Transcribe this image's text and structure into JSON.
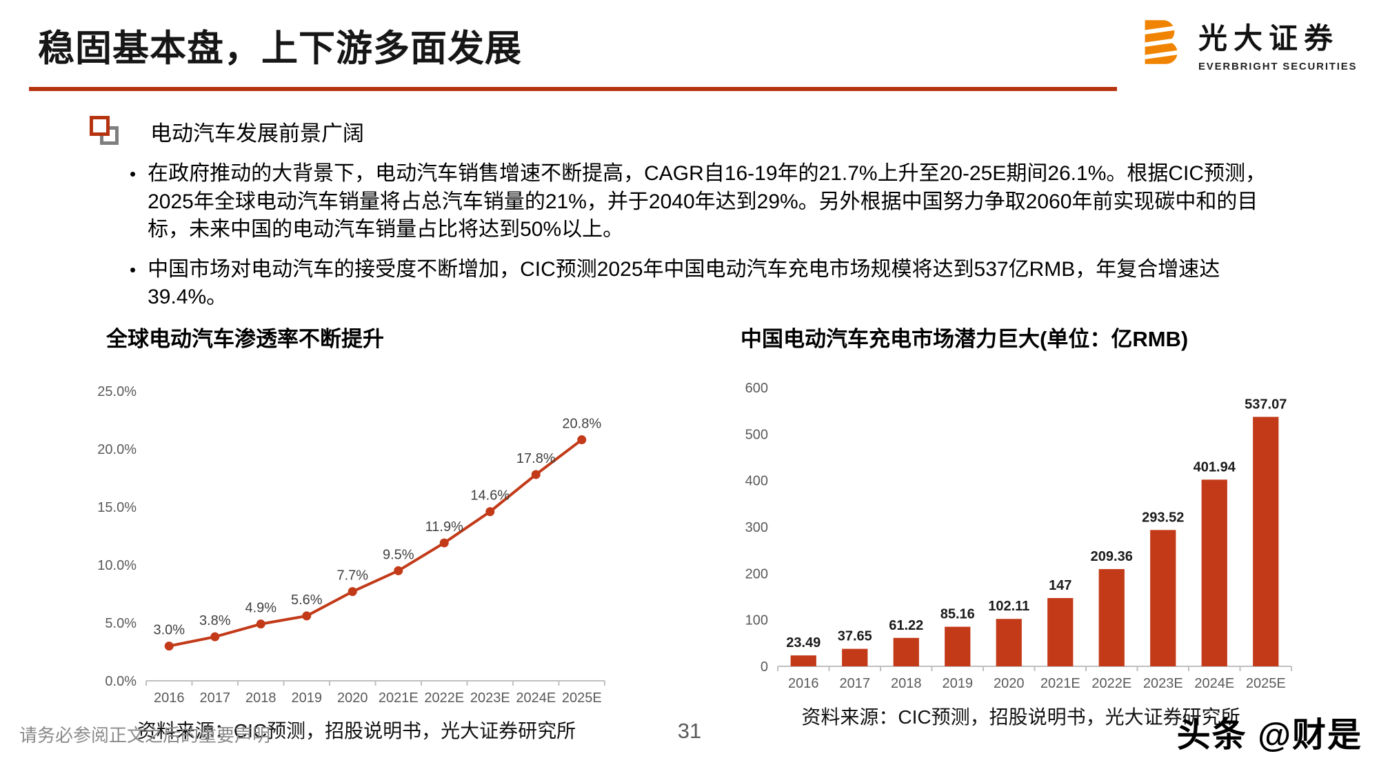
{
  "header": {
    "title": "稳固基本盘，上下游多面发展",
    "logo": {
      "name_cn": "光大证券",
      "name_en": "EVERBRIGHT SECURITIES"
    }
  },
  "section": {
    "heading": "电动汽车发展前景广阔",
    "bullet_marker": "•",
    "bullets": [
      "在政府推动的大背景下，电动汽车销售增速不断提高，CAGR自16-19年的21.7%上升至20-25E期间26.1%。根据CIC预测，2025年全球电动汽车销量将占总汽车销量的21%，并于2040年达到29%。另外根据中国努力争取2060年前实现碳中和的目标，未来中国的电动汽车销量占比将达到50%以上。",
      "中国市场对电动汽车的接受度不断增加，CIC预测2025年中国电动汽车充电市场规模将达到537亿RMB，年复合增速达39.4%。"
    ]
  },
  "colors": {
    "accent": "#b5330f",
    "chart_red": "#c23a18",
    "logo_orange": "#f08300"
  },
  "chart_data": [
    {
      "type": "line",
      "title": "全球电动汽车渗透率不断提升",
      "categories": [
        "2016",
        "2017",
        "2018",
        "2019",
        "2020",
        "2021E",
        "2022E",
        "2023E",
        "2024E",
        "2025E"
      ],
      "values": [
        3.0,
        3.8,
        4.9,
        5.6,
        7.7,
        9.5,
        11.9,
        14.6,
        17.8,
        20.8
      ],
      "point_labels": [
        "3.0%",
        "3.8%",
        "4.9%",
        "5.6%",
        "7.7%",
        "9.5%",
        "11.9%",
        "14.6%",
        "17.8%",
        "20.8%"
      ],
      "y_tick_values": [
        0,
        5,
        10,
        15,
        20,
        25
      ],
      "y_tick_labels": [
        "0.0%",
        "5.0%",
        "10.0%",
        "15.0%",
        "20.0%",
        "25.0%"
      ],
      "ylim": [
        0,
        25
      ],
      "grid": false,
      "legend": "none",
      "color": "#c23a18",
      "source": "资料来源：CIC预测，招股说明书，光大证券研究所"
    },
    {
      "type": "bar",
      "title": "中国电动汽车充电市场潜力巨大(单位：亿RMB)",
      "categories": [
        "2016",
        "2017",
        "2018",
        "2019",
        "2020",
        "2021E",
        "2022E",
        "2023E",
        "2024E",
        "2025E"
      ],
      "values": [
        23.49,
        37.65,
        61.22,
        85.16,
        102.11,
        147,
        209.36,
        293.52,
        401.94,
        537.07
      ],
      "point_labels": [
        "23.49",
        "37.65",
        "61.22",
        "85.16",
        "102.11",
        "147",
        "209.36",
        "293.52",
        "401.94",
        "537.07"
      ],
      "y_tick_values": [
        0,
        100,
        200,
        300,
        400,
        500,
        600
      ],
      "y_tick_labels": [
        "0",
        "100",
        "200",
        "300",
        "400",
        "500",
        "600"
      ],
      "ylim": [
        0,
        600
      ],
      "grid": false,
      "legend": "none",
      "color": "#c23a18",
      "source": "资料来源：CIC预测，招股说明书，光大证券研究所"
    }
  ],
  "footer": {
    "disclaimer": "请务必参阅正文之后的重要声明",
    "page_number": "31",
    "watermark": "头条 @财是"
  }
}
